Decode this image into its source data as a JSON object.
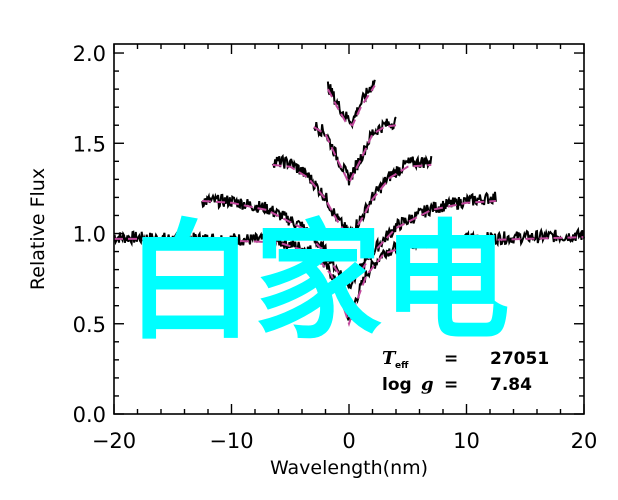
{
  "chart_data": {
    "type": "line",
    "title": "",
    "xlabel": "Wavelength(nm)",
    "ylabel": "Relative Flux",
    "xlim": [
      -20,
      20
    ],
    "ylim": [
      0,
      2.05
    ],
    "xticks": [
      -20,
      -10,
      0,
      10,
      20
    ],
    "xtick_labels": [
      "−20",
      "−10",
      "0",
      "10",
      "20"
    ],
    "yticks": [
      0.0,
      0.5,
      1.0,
      1.5,
      2.0
    ],
    "ytick_labels": [
      "0.0",
      "0.5",
      "1.0",
      "1.5",
      "2.0"
    ],
    "grid": false,
    "colors": {
      "observed": "#000000",
      "model": "#c0479b",
      "watermark": "#00ffff"
    },
    "series": [
      {
        "x": [
          -20,
          -15,
          -10,
          -6,
          -3,
          -1.5,
          -0.5,
          0,
          0.5,
          1.5,
          3,
          6,
          10,
          15,
          20
        ],
        "observed": [
          0.98,
          0.97,
          0.97,
          0.96,
          0.9,
          0.78,
          0.62,
          0.52,
          0.62,
          0.78,
          0.9,
          0.96,
          0.97,
          0.98,
          0.99
        ],
        "model": [
          0.97,
          0.97,
          0.96,
          0.95,
          0.89,
          0.77,
          0.6,
          0.5,
          0.6,
          0.77,
          0.89,
          0.95,
          0.96,
          0.97,
          0.98
        ]
      },
      {
        "x": [
          -12.5,
          -10,
          -7,
          -4,
          -2,
          -1,
          0,
          1,
          2,
          4,
          7,
          10,
          12.5
        ],
        "observed": [
          1.18,
          1.18,
          1.14,
          1.04,
          0.9,
          0.8,
          0.72,
          0.8,
          0.9,
          1.04,
          1.14,
          1.18,
          1.2
        ],
        "model": [
          1.18,
          1.17,
          1.13,
          1.03,
          0.89,
          0.79,
          0.72,
          0.79,
          0.89,
          1.03,
          1.13,
          1.17,
          1.18
        ]
      },
      {
        "x": [
          -6.5,
          -5,
          -3.5,
          -2,
          -1,
          0,
          1,
          2,
          3.5,
          5,
          7
        ],
        "observed": [
          1.4,
          1.39,
          1.32,
          1.2,
          1.08,
          1.0,
          1.08,
          1.2,
          1.32,
          1.39,
          1.4
        ],
        "model": [
          1.38,
          1.37,
          1.31,
          1.19,
          1.07,
          0.98,
          1.07,
          1.19,
          1.31,
          1.37,
          1.38
        ]
      },
      {
        "x": [
          -3,
          -2,
          -1,
          0,
          1,
          2,
          3,
          4
        ],
        "observed": [
          1.6,
          1.56,
          1.42,
          1.3,
          1.42,
          1.56,
          1.6,
          1.62
        ],
        "model": [
          1.59,
          1.55,
          1.41,
          1.28,
          1.41,
          1.55,
          1.59,
          1.6
        ]
      },
      {
        "x": [
          -1.8,
          -1,
          -0.3,
          0.3,
          1,
          2.2
        ],
        "observed": [
          1.82,
          1.72,
          1.65,
          1.62,
          1.72,
          1.85
        ],
        "model": [
          1.8,
          1.7,
          1.62,
          1.6,
          1.7,
          1.82
        ]
      }
    ],
    "annotation": {
      "teff_symbol": "T",
      "teff_subscript": "eff",
      "teff_equals": "=",
      "teff_value": "27051",
      "logg_label": "log",
      "logg_symbol": "g",
      "logg_equals": "=",
      "logg_value": "7.84"
    }
  },
  "watermark": "白家电"
}
